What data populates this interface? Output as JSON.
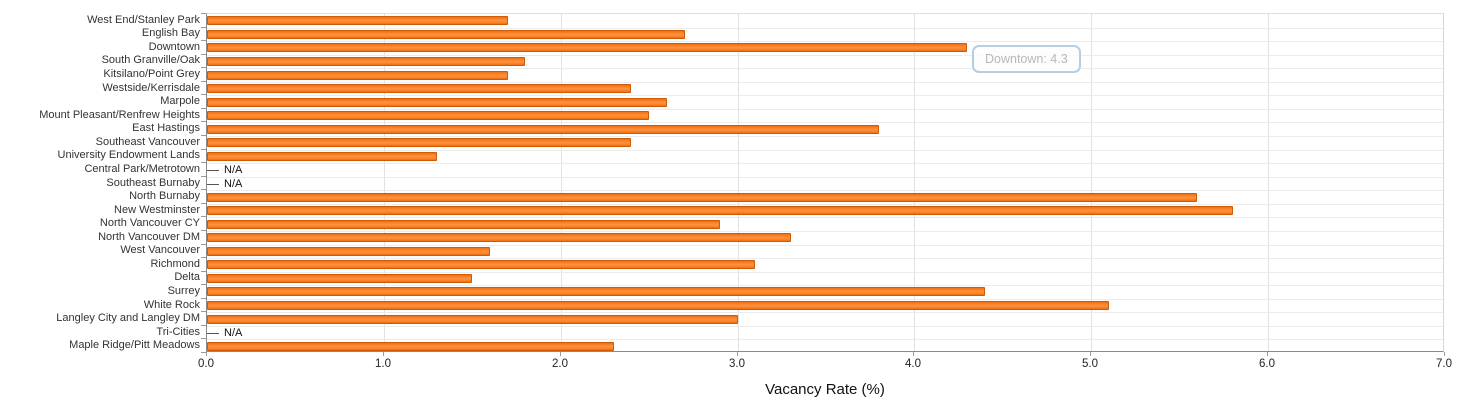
{
  "chart_data": {
    "type": "bar",
    "orientation": "horizontal",
    "xlabel": "Vacancy Rate (%)",
    "ylabel": "",
    "xlim": [
      0,
      7
    ],
    "x_ticks": [
      "0.0",
      "1.0",
      "2.0",
      "3.0",
      "4.0",
      "5.0",
      "6.0",
      "7.0"
    ],
    "grid": true,
    "na_label": "N/A",
    "bar_color": "#fa8229",
    "bar_border_color": "#cf5a06",
    "categories": [
      "West End/Stanley Park",
      "English Bay",
      "Downtown",
      "South Granville/Oak",
      "Kitsilano/Point Grey",
      "Westside/Kerrisdale",
      "Marpole",
      "Mount Pleasant/Renfrew Heights",
      "East Hastings",
      "Southeast Vancouver",
      "University Endowment Lands",
      "Central Park/Metrotown",
      "Southeast Burnaby",
      "North Burnaby",
      "New Westminster",
      "North Vancouver CY",
      "North Vancouver DM",
      "West Vancouver",
      "Richmond",
      "Delta",
      "Surrey",
      "White Rock",
      "Langley City and Langley DM",
      "Tri-Cities",
      "Maple Ridge/Pitt Meadows"
    ],
    "values": [
      1.7,
      2.7,
      4.3,
      1.8,
      1.7,
      2.4,
      2.6,
      2.5,
      3.8,
      2.4,
      1.3,
      null,
      null,
      5.6,
      5.8,
      2.9,
      3.3,
      1.6,
      3.1,
      1.5,
      4.4,
      5.1,
      3.0,
      null,
      2.3
    ]
  },
  "tooltip": {
    "text": "Downtown: 4.3"
  }
}
